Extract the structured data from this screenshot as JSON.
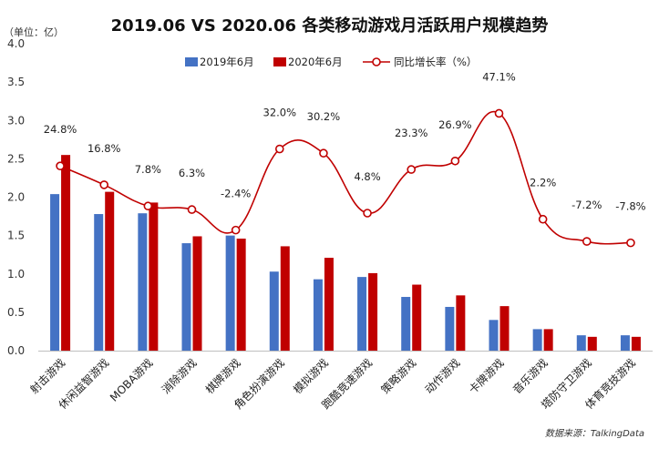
{
  "header": {
    "title": "2019.06 VS 2020.06  各类移动游戏月活跃用户规模趋势",
    "unit": "（单位：亿）",
    "source": "数据来源：TalkingData"
  },
  "colors": {
    "bar2019": "#4472C4",
    "bar2020": "#C00000",
    "line": "#C00000"
  },
  "chart_data": {
    "type": "bar",
    "title": "2019.06 VS 2020.06  各类移动游戏月活跃用户规模趋势",
    "ylabel": "（单位：亿）",
    "ylim": [
      0,
      4.0
    ],
    "yticks": [
      "0.0",
      "0.5",
      "1.0",
      "1.5",
      "2.0",
      "2.5",
      "3.0",
      "3.5",
      "4.0"
    ],
    "legend_position": "top",
    "grid": false,
    "categories": [
      "射击游戏",
      "休闲益智游戏",
      "MOBA游戏",
      "消除游戏",
      "棋牌游戏",
      "角色扮演游戏",
      "模拟游戏",
      "跑酷竞速游戏",
      "策略游戏",
      "动作游戏",
      "卡牌游戏",
      "音乐游戏",
      "塔防守卫游戏",
      "体育竞技游戏"
    ],
    "series": [
      {
        "name": "2019年6月",
        "type": "bar",
        "values": [
          2.04,
          1.78,
          1.79,
          1.4,
          1.5,
          1.03,
          0.93,
          0.96,
          0.7,
          0.57,
          0.4,
          0.28,
          0.2,
          0.2
        ]
      },
      {
        "name": "2020年6月",
        "type": "bar",
        "values": [
          2.55,
          2.07,
          1.93,
          1.49,
          1.46,
          1.36,
          1.21,
          1.01,
          0.86,
          0.72,
          0.58,
          0.28,
          0.18,
          0.18
        ]
      },
      {
        "name": "同比增长率（%）",
        "type": "line",
        "values": [
          24.8,
          16.8,
          7.8,
          6.3,
          -2.4,
          32.0,
          30.2,
          4.8,
          23.3,
          26.9,
          47.1,
          2.2,
          -7.2,
          -7.8
        ]
      }
    ],
    "growth_labels": [
      "24.8%",
      "16.8%",
      "7.8%",
      "6.3%",
      "-2.4%",
      "32.0%",
      "30.2%",
      "4.8%",
      "23.3%",
      "26.9%",
      "47.1%",
      "2.2%",
      "-7.2%",
      "-7.8%"
    ]
  }
}
